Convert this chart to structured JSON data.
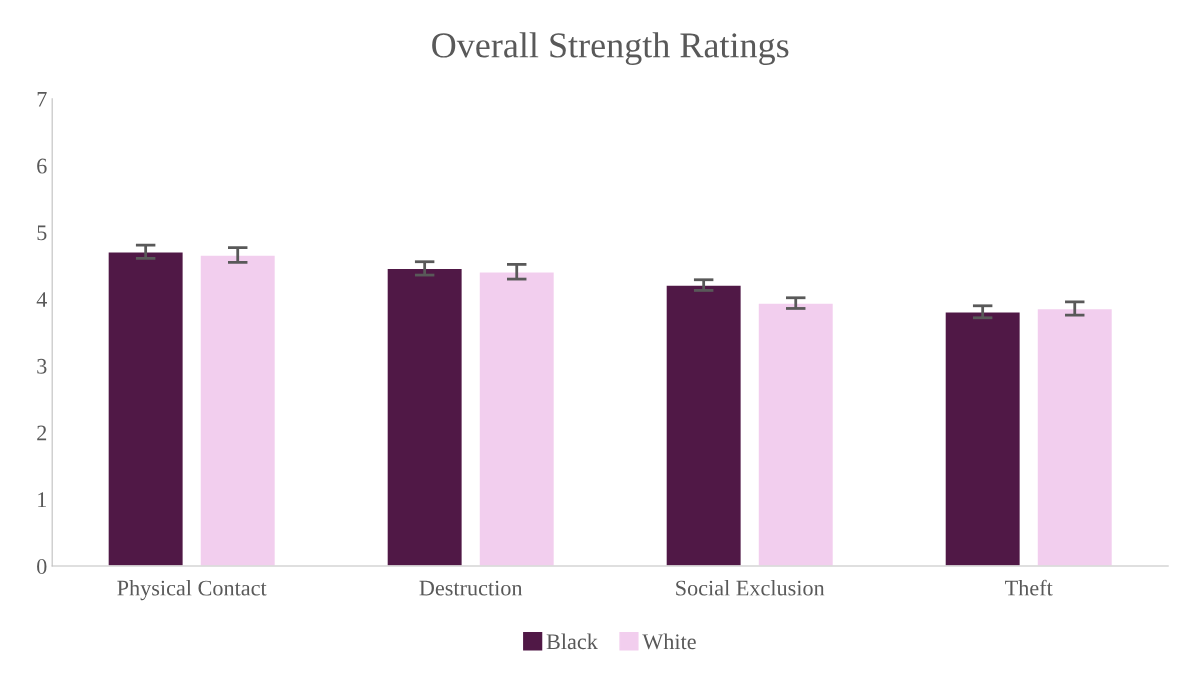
{
  "chart_data": {
    "type": "bar",
    "title": "Overall Strength Ratings",
    "categories": [
      "Physical Contact",
      "Destruction",
      "Social Exclusion",
      "Theft"
    ],
    "series": [
      {
        "name": "Black",
        "color": "#501846",
        "values": [
          4.71,
          4.46,
          4.21,
          3.81
        ],
        "errors": [
          0.1,
          0.1,
          0.08,
          0.09
        ]
      },
      {
        "name": "White",
        "color": "#f2ceee",
        "values": [
          4.66,
          4.41,
          3.94,
          3.86
        ],
        "errors": [
          0.11,
          0.11,
          0.08,
          0.1
        ]
      }
    ],
    "ylim": [
      0,
      7
    ],
    "yticks": [
      0,
      1,
      2,
      3,
      4,
      5,
      6,
      7
    ],
    "grid": false,
    "legend": "bottom"
  }
}
